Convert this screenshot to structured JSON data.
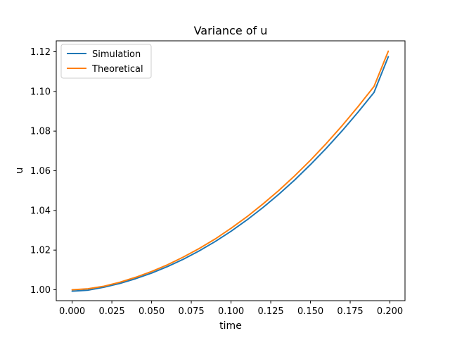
{
  "chart_data": {
    "type": "line",
    "title": "Variance of u",
    "xlabel": "time",
    "ylabel": "u",
    "xlim": [
      -0.01,
      0.2095
    ],
    "ylim": [
      0.9945,
      1.1255
    ],
    "xticks": [
      0.0,
      0.025,
      0.05,
      0.075,
      0.1,
      0.125,
      0.15,
      0.175,
      0.2
    ],
    "xtick_labels": [
      "0.000",
      "0.025",
      "0.050",
      "0.075",
      "0.100",
      "0.125",
      "0.150",
      "0.175",
      "0.200"
    ],
    "yticks": [
      1.0,
      1.02,
      1.04,
      1.06,
      1.08,
      1.1,
      1.12
    ],
    "ytick_labels": [
      "1.00",
      "1.02",
      "1.04",
      "1.06",
      "1.08",
      "1.10",
      "1.12"
    ],
    "grid": false,
    "legend_position": "upper-left",
    "series": [
      {
        "name": "Simulation",
        "color": "#1f77b4",
        "x": [
          0.0,
          0.01,
          0.02,
          0.03,
          0.04,
          0.05,
          0.06,
          0.07,
          0.08,
          0.09,
          0.1,
          0.11,
          0.12,
          0.13,
          0.14,
          0.15,
          0.16,
          0.17,
          0.18,
          0.19,
          0.199
        ],
        "y": [
          0.9993,
          0.9998,
          1.0013,
          1.0032,
          1.0056,
          1.0084,
          1.0117,
          1.0154,
          1.0196,
          1.0243,
          1.0295,
          1.0352,
          1.0414,
          1.0481,
          1.0553,
          1.0631,
          1.0714,
          1.0802,
          1.0896,
          1.0995,
          1.1175
        ]
      },
      {
        "name": "Theoretical",
        "color": "#ff7f0e",
        "x": [
          0.0,
          0.01,
          0.02,
          0.03,
          0.04,
          0.05,
          0.06,
          0.07,
          0.08,
          0.09,
          0.1,
          0.11,
          0.12,
          0.13,
          0.14,
          0.15,
          0.16,
          0.17,
          0.18,
          0.19,
          0.199
        ],
        "y": [
          1.0,
          1.0005,
          1.0018,
          1.0038,
          1.0063,
          1.0092,
          1.0126,
          1.0165,
          1.0208,
          1.0256,
          1.031,
          1.0368,
          1.0432,
          1.05,
          1.0574,
          1.0653,
          1.0738,
          1.0828,
          1.0924,
          1.1025,
          1.1203
        ]
      }
    ]
  }
}
